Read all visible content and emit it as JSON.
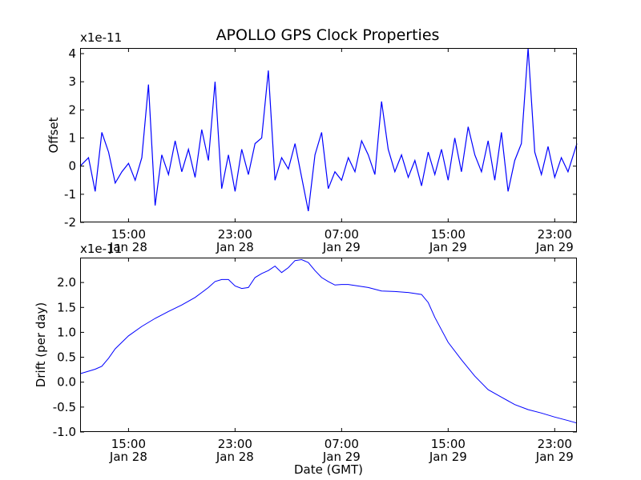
{
  "chart_data": [
    {
      "type": "line",
      "title": "APOLLO GPS Clock Properties",
      "ylabel": "Offset",
      "xlabel": "",
      "y_multiplier": "x1e-11",
      "line_color": "#0000ff",
      "ylim": [
        -2,
        4.2
      ],
      "yticks": [
        -2,
        -1,
        0,
        1,
        2,
        3,
        4
      ],
      "ytick_labels": [
        "-2",
        "-1",
        "0",
        "1",
        "2",
        "3",
        "4"
      ],
      "xlim": [
        "2013-01-28 11:22",
        "2013-01-30 00:40"
      ],
      "xticks": [
        {
          "time": "2013-01-28 15:00",
          "label1": "15:00",
          "label2": "Jan 28"
        },
        {
          "time": "2013-01-28 23:00",
          "label1": "23:00",
          "label2": "Jan 28"
        },
        {
          "time": "2013-01-29 07:00",
          "label1": "07:00",
          "label2": "Jan 29"
        },
        {
          "time": "2013-01-29 15:00",
          "label1": "15:00",
          "label2": "Jan 29"
        },
        {
          "time": "2013-01-29 23:00",
          "label1": "23:00",
          "label2": "Jan 29"
        }
      ],
      "series": [
        {
          "x": [
            "2013-01-28 11:22",
            "2013-01-28 12:00",
            "2013-01-28 12:30",
            "2013-01-28 13:00",
            "2013-01-28 13:30",
            "2013-01-28 14:00",
            "2013-01-28 14:30",
            "2013-01-28 15:00",
            "2013-01-28 15:30",
            "2013-01-28 16:00",
            "2013-01-28 16:30",
            "2013-01-28 17:00",
            "2013-01-28 17:30",
            "2013-01-28 18:00",
            "2013-01-28 18:30",
            "2013-01-28 19:00",
            "2013-01-28 19:30",
            "2013-01-28 20:00",
            "2013-01-28 20:30",
            "2013-01-28 21:00",
            "2013-01-28 21:30",
            "2013-01-28 22:00",
            "2013-01-28 22:30",
            "2013-01-28 23:00",
            "2013-01-28 23:30",
            "2013-01-29 00:00",
            "2013-01-29 00:30",
            "2013-01-29 01:00",
            "2013-01-29 01:30",
            "2013-01-29 02:00",
            "2013-01-29 02:30",
            "2013-01-29 03:00",
            "2013-01-29 03:30",
            "2013-01-29 04:00",
            "2013-01-29 04:30",
            "2013-01-29 05:00",
            "2013-01-29 05:30",
            "2013-01-29 06:00",
            "2013-01-29 06:30",
            "2013-01-29 07:00",
            "2013-01-29 07:30",
            "2013-01-29 08:00",
            "2013-01-29 08:30",
            "2013-01-29 09:00",
            "2013-01-29 09:30",
            "2013-01-29 10:00",
            "2013-01-29 10:30",
            "2013-01-29 11:00",
            "2013-01-29 11:30",
            "2013-01-29 12:00",
            "2013-01-29 12:30",
            "2013-01-29 13:00",
            "2013-01-29 13:30",
            "2013-01-29 14:00",
            "2013-01-29 14:30",
            "2013-01-29 15:00",
            "2013-01-29 15:30",
            "2013-01-29 16:00",
            "2013-01-29 16:30",
            "2013-01-29 17:00",
            "2013-01-29 17:30",
            "2013-01-29 18:00",
            "2013-01-29 18:30",
            "2013-01-29 19:00",
            "2013-01-29 19:30",
            "2013-01-29 20:00",
            "2013-01-29 20:30",
            "2013-01-29 21:00",
            "2013-01-29 21:30",
            "2013-01-29 22:00",
            "2013-01-29 22:30",
            "2013-01-29 23:00",
            "2013-01-29 23:30",
            "2013-01-30 00:00",
            "2013-01-30 00:40"
          ],
          "y": [
            0.0,
            0.3,
            -0.9,
            1.2,
            0.5,
            -0.6,
            -0.2,
            0.1,
            -0.5,
            0.3,
            2.9,
            -1.4,
            0.4,
            -0.3,
            0.9,
            -0.2,
            0.6,
            -0.4,
            1.3,
            0.2,
            3.0,
            -0.8,
            0.4,
            -0.9,
            0.6,
            -0.3,
            0.8,
            1.0,
            3.4,
            -0.5,
            0.3,
            -0.1,
            0.8,
            -0.4,
            -1.6,
            0.4,
            1.2,
            -0.8,
            -0.2,
            -0.5,
            0.3,
            -0.2,
            0.9,
            0.4,
            -0.3,
            2.3,
            0.6,
            -0.2,
            0.4,
            -0.4,
            0.2,
            -0.7,
            0.5,
            -0.3,
            0.6,
            -0.5,
            1.0,
            -0.2,
            1.4,
            0.4,
            -0.2,
            0.9,
            -0.5,
            1.2,
            -0.9,
            0.2,
            0.8,
            4.2,
            0.5,
            -0.3,
            0.7,
            -0.4,
            0.3,
            -0.2,
            0.8
          ]
        }
      ]
    },
    {
      "type": "line",
      "title": "",
      "ylabel": "Drift (per day)",
      "xlabel": "Date (GMT)",
      "y_multiplier": "x1e-11",
      "line_color": "#0000ff",
      "ylim": [
        -1.0,
        2.5
      ],
      "yticks": [
        -1.0,
        -0.5,
        0.0,
        0.5,
        1.0,
        1.5,
        2.0
      ],
      "ytick_labels": [
        "-1.0",
        "-0.5",
        "0.0",
        "0.5",
        "1.0",
        "1.5",
        "2.0"
      ],
      "xlim": [
        "2013-01-28 11:22",
        "2013-01-30 00:40"
      ],
      "xticks": [
        {
          "time": "2013-01-28 15:00",
          "label1": "15:00",
          "label2": "Jan 28"
        },
        {
          "time": "2013-01-28 23:00",
          "label1": "23:00",
          "label2": "Jan 28"
        },
        {
          "time": "2013-01-29 07:00",
          "label1": "07:00",
          "label2": "Jan 29"
        },
        {
          "time": "2013-01-29 15:00",
          "label1": "15:00",
          "label2": "Jan 29"
        },
        {
          "time": "2013-01-29 23:00",
          "label1": "23:00",
          "label2": "Jan 29"
        }
      ],
      "series": [
        {
          "x": [
            "2013-01-28 11:22",
            "2013-01-28 12:00",
            "2013-01-28 12:30",
            "2013-01-28 13:00",
            "2013-01-28 13:30",
            "2013-01-28 14:00",
            "2013-01-28 15:00",
            "2013-01-28 16:00",
            "2013-01-28 17:00",
            "2013-01-28 18:00",
            "2013-01-28 19:00",
            "2013-01-28 20:00",
            "2013-01-28 20:30",
            "2013-01-28 21:00",
            "2013-01-28 21:30",
            "2013-01-28 22:00",
            "2013-01-28 22:30",
            "2013-01-28 23:00",
            "2013-01-28 23:30",
            "2013-01-29 00:00",
            "2013-01-29 00:30",
            "2013-01-29 01:00",
            "2013-01-29 01:30",
            "2013-01-29 02:00",
            "2013-01-29 02:30",
            "2013-01-29 03:00",
            "2013-01-29 03:30",
            "2013-01-29 04:00",
            "2013-01-29 04:30",
            "2013-01-29 05:00",
            "2013-01-29 05:30",
            "2013-01-29 06:00",
            "2013-01-29 06:30",
            "2013-01-29 07:00",
            "2013-01-29 07:30",
            "2013-01-29 08:00",
            "2013-01-29 09:00",
            "2013-01-29 10:00",
            "2013-01-29 11:00",
            "2013-01-29 12:00",
            "2013-01-29 13:00",
            "2013-01-29 13:30",
            "2013-01-29 14:00",
            "2013-01-29 14:30",
            "2013-01-29 15:00",
            "2013-01-29 16:00",
            "2013-01-29 17:00",
            "2013-01-29 18:00",
            "2013-01-29 19:00",
            "2013-01-29 20:00",
            "2013-01-29 21:00",
            "2013-01-29 22:00",
            "2013-01-29 23:00",
            "2013-01-30 00:00",
            "2013-01-30 00:40"
          ],
          "y": [
            0.17,
            0.22,
            0.26,
            0.32,
            0.48,
            0.67,
            0.93,
            1.12,
            1.28,
            1.42,
            1.55,
            1.7,
            1.8,
            1.9,
            2.02,
            2.06,
            2.06,
            1.93,
            1.88,
            1.9,
            2.1,
            2.18,
            2.24,
            2.33,
            2.2,
            2.3,
            2.44,
            2.46,
            2.4,
            2.24,
            2.1,
            2.02,
            1.95,
            1.96,
            1.96,
            1.94,
            1.9,
            1.83,
            1.82,
            1.8,
            1.76,
            1.6,
            1.3,
            1.05,
            0.8,
            0.45,
            0.12,
            -0.15,
            -0.3,
            -0.45,
            -0.55,
            -0.62,
            -0.7,
            -0.77,
            -0.82
          ]
        }
      ]
    }
  ]
}
